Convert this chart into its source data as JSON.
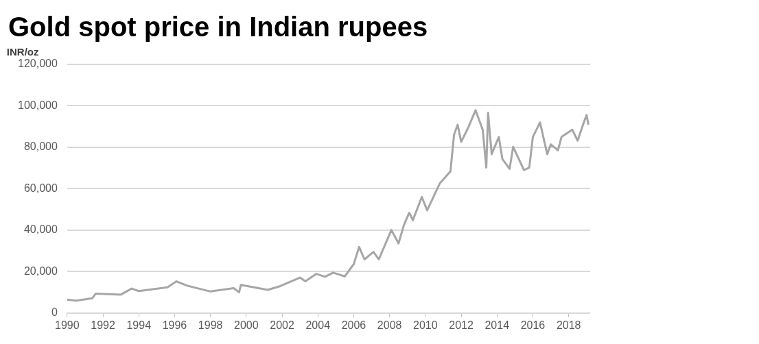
{
  "chart_data": {
    "type": "line",
    "title": "Gold spot price in Indian rupees",
    "ylabel": "INR/oz",
    "x": [
      1990.0,
      1990.5,
      1991.4,
      1991.6,
      1993.0,
      1993.6,
      1994.0,
      1995.6,
      1996.1,
      1996.7,
      1998.0,
      1999.3,
      1999.6,
      1999.7,
      2001.2,
      2001.9,
      2003.0,
      2003.3,
      2003.9,
      2004.4,
      2004.85,
      2005.5,
      2006.0,
      2006.3,
      2006.6,
      2007.1,
      2007.4,
      2008.1,
      2008.5,
      2008.8,
      2009.1,
      2009.3,
      2009.8,
      2010.1,
      2010.8,
      2011.4,
      2011.6,
      2011.8,
      2012.0,
      2012.4,
      2012.8,
      2013.2,
      2013.4,
      2013.5,
      2013.7,
      2014.1,
      2014.3,
      2014.7,
      2014.9,
      2015.5,
      2015.8,
      2016.0,
      2016.4,
      2016.8,
      2017.0,
      2017.4,
      2017.6,
      2018.2,
      2018.5,
      2018.8,
      2019.0,
      2019.1
    ],
    "series": [
      {
        "color": "#a6a6a6",
        "values": [
          6500,
          6000,
          7100,
          9400,
          8900,
          11800,
          10600,
          12400,
          15300,
          13200,
          10400,
          12000,
          10000,
          13600,
          11200,
          13000,
          17100,
          15300,
          18900,
          17500,
          19500,
          17700,
          23600,
          31900,
          25900,
          29500,
          25900,
          40100,
          33600,
          42500,
          48400,
          44800,
          56000,
          49600,
          62500,
          68400,
          86100,
          90900,
          82600,
          89700,
          97900,
          88500,
          70200,
          96700,
          76700,
          85000,
          74300,
          69600,
          80200,
          69000,
          70200,
          85000,
          92000,
          76700,
          81400,
          78500,
          85000,
          88500,
          83200,
          90900,
          95600,
          90900
        ]
      }
    ],
    "xlim": [
      1990,
      2019.2
    ],
    "xticks": [
      1990,
      1992,
      1994,
      1996,
      1998,
      2000,
      2002,
      2004,
      2006,
      2008,
      2010,
      2012,
      2014,
      2016,
      2018
    ],
    "ylim": [
      0,
      120000
    ],
    "yticks": [
      0,
      {
        "value": 20000,
        "label": "20,000"
      },
      {
        "value": 40000,
        "label": "40,000"
      },
      {
        "value": 60000,
        "label": "60,000"
      },
      {
        "value": 80000,
        "label": "80,000"
      },
      {
        "value": 100000,
        "label": "100,000"
      },
      {
        "value": 120000,
        "label": "120,000"
      }
    ],
    "grid": "y",
    "legend": false,
    "marker": "none",
    "line_style": "solid"
  }
}
